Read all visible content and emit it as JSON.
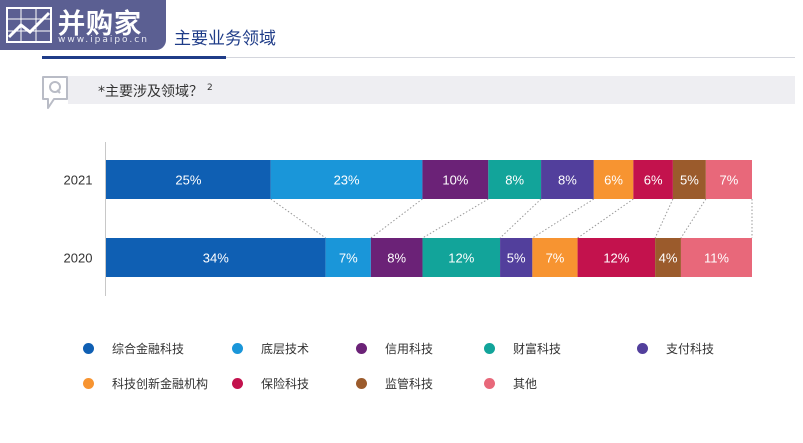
{
  "header": {
    "logo_text": "并购家",
    "logo_url": "www.ipaipo.cn",
    "title": "主要业务领域"
  },
  "question": {
    "text": "*主要涉及领域？",
    "footnote": "2"
  },
  "colors": {
    "brand_blue": "#1f3c88",
    "logo_bg": "#5b5f92"
  },
  "chart_data": {
    "type": "bar",
    "orientation": "horizontal",
    "stacked": true,
    "normalized": true,
    "categories": [
      "2021",
      "2020"
    ],
    "series": [
      {
        "name": "综合金融科技",
        "color": "#0f5fb3",
        "values": [
          25,
          34
        ],
        "labels": [
          "25%",
          "34%"
        ]
      },
      {
        "name": "底层技术",
        "color": "#1a96d9",
        "values": [
          23,
          7
        ],
        "labels": [
          "23%",
          "7%"
        ]
      },
      {
        "name": "信用科技",
        "color": "#6b2277",
        "values": [
          10,
          8
        ],
        "labels": [
          "10%",
          "8%"
        ]
      },
      {
        "name": "财富科技",
        "color": "#12a49a",
        "values": [
          8,
          12
        ],
        "labels": [
          "8%",
          "12%"
        ]
      },
      {
        "name": "支付科技",
        "color": "#523f9c",
        "values": [
          8,
          5
        ],
        "labels": [
          "8%",
          "5%"
        ]
      },
      {
        "name": "科技创新金融机构",
        "color": "#f79431",
        "values": [
          6,
          7
        ],
        "labels": [
          "6%",
          "7%"
        ]
      },
      {
        "name": "保险科技",
        "color": "#c3124d",
        "values": [
          6,
          12
        ],
        "labels": [
          "6%",
          "12%"
        ]
      },
      {
        "name": "监管科技",
        "color": "#9b5b2c",
        "values": [
          5,
          4
        ],
        "labels": [
          "5%",
          "4%"
        ]
      },
      {
        "name": "其他",
        "color": "#e8687a",
        "values": [
          7,
          11
        ],
        "labels": [
          "7%",
          "11%"
        ]
      }
    ],
    "legend_position": "bottom",
    "grid": false
  }
}
